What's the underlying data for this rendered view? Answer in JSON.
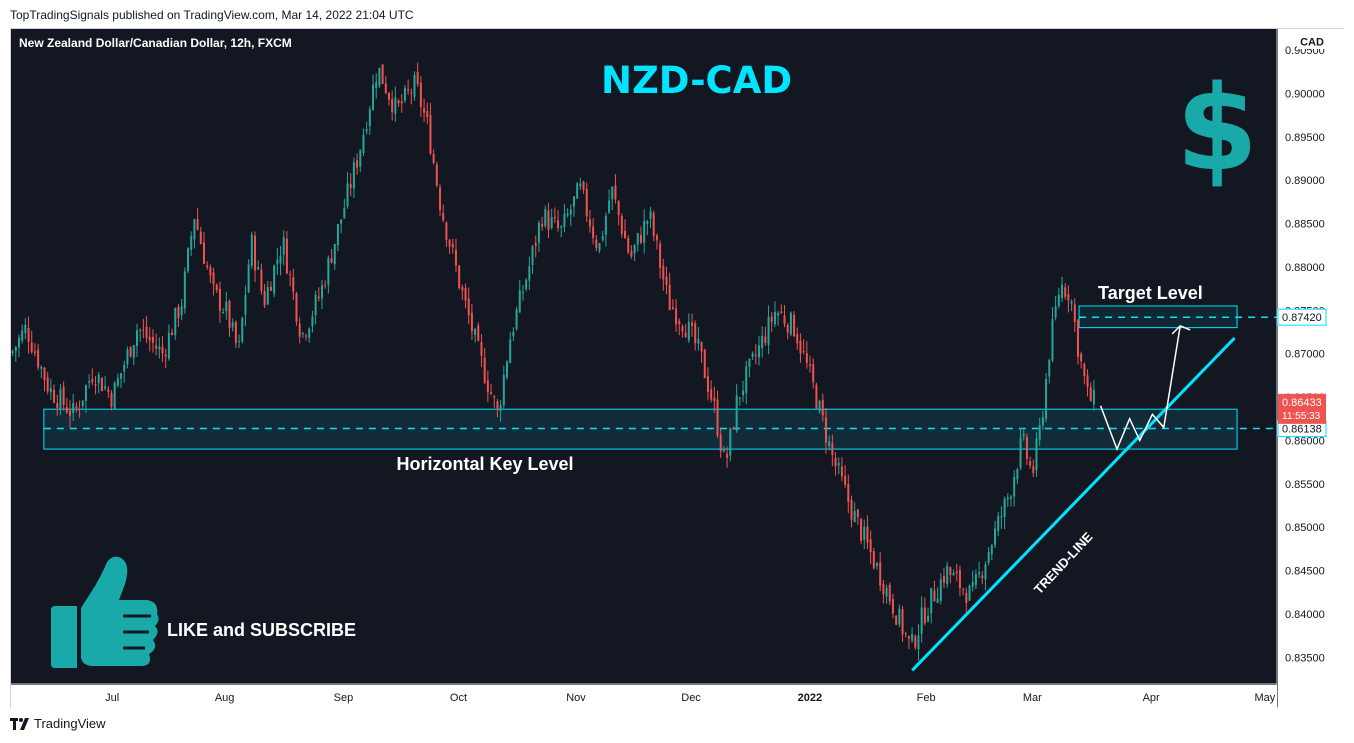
{
  "header": {
    "published": "TopTradingSignals published on TradingView.com, Mar 14, 2022 21:04 UTC"
  },
  "footer": {
    "brand": "TradingView",
    "logo_icon": "tradingview-logo-icon"
  },
  "colors": {
    "background": "#131722",
    "up": "#26a69a",
    "down": "#ef5350",
    "accent": "#00e5ff",
    "teal_icon": "#1aa9a9",
    "white": "#ffffff"
  },
  "chart_data": {
    "type": "candlestick",
    "symbol_title": "New Zealand Dollar/Canadian Dollar, 12h, FXCM",
    "big_title": "NZD-CAD",
    "currency": "CAD",
    "ylim": [
      0.8325,
      0.9065
    ],
    "y_ticks": [
      "0.90500",
      "0.90000",
      "0.89500",
      "0.89000",
      "0.88500",
      "0.88000",
      "0.87500",
      "0.87000",
      "0.86500",
      "0.86000",
      "0.85500",
      "0.85000",
      "0.84500",
      "0.84000",
      "0.83500"
    ],
    "x_ticks": [
      {
        "label": "Jul",
        "t": 0.08,
        "bold": false
      },
      {
        "label": "Aug",
        "t": 0.169,
        "bold": false
      },
      {
        "label": "Sep",
        "t": 0.263,
        "bold": false
      },
      {
        "label": "Oct",
        "t": 0.354,
        "bold": false
      },
      {
        "label": "Nov",
        "t": 0.447,
        "bold": false
      },
      {
        "label": "Dec",
        "t": 0.538,
        "bold": false
      },
      {
        "label": "2022",
        "t": 0.632,
        "bold": true
      },
      {
        "label": "Feb",
        "t": 0.724,
        "bold": false
      },
      {
        "label": "Mar",
        "t": 0.808,
        "bold": false
      },
      {
        "label": "Apr",
        "t": 0.902,
        "bold": false
      },
      {
        "label": "May",
        "t": 0.992,
        "bold": false
      }
    ],
    "price_path": [
      [
        0.0,
        0.87
      ],
      [
        0.012,
        0.873
      ],
      [
        0.03,
        0.866
      ],
      [
        0.05,
        0.863
      ],
      [
        0.065,
        0.868
      ],
      [
        0.08,
        0.865
      ],
      [
        0.1,
        0.873
      ],
      [
        0.12,
        0.87
      ],
      [
        0.135,
        0.876
      ],
      [
        0.145,
        0.886
      ],
      [
        0.16,
        0.877
      ],
      [
        0.17,
        0.875
      ],
      [
        0.18,
        0.87
      ],
      [
        0.19,
        0.883
      ],
      [
        0.2,
        0.876
      ],
      [
        0.215,
        0.883
      ],
      [
        0.23,
        0.872
      ],
      [
        0.245,
        0.877
      ],
      [
        0.26,
        0.885
      ],
      [
        0.275,
        0.893
      ],
      [
        0.29,
        0.903
      ],
      [
        0.305,
        0.898
      ],
      [
        0.32,
        0.901
      ],
      [
        0.33,
        0.896
      ],
      [
        0.34,
        0.887
      ],
      [
        0.355,
        0.878
      ],
      [
        0.37,
        0.87
      ],
      [
        0.385,
        0.863
      ],
      [
        0.395,
        0.872
      ],
      [
        0.41,
        0.88
      ],
      [
        0.42,
        0.886
      ],
      [
        0.435,
        0.884
      ],
      [
        0.45,
        0.889
      ],
      [
        0.465,
        0.882
      ],
      [
        0.475,
        0.889
      ],
      [
        0.49,
        0.881
      ],
      [
        0.505,
        0.886
      ],
      [
        0.52,
        0.876
      ],
      [
        0.535,
        0.873
      ],
      [
        0.545,
        0.87
      ],
      [
        0.556,
        0.864
      ],
      [
        0.565,
        0.857
      ],
      [
        0.575,
        0.865
      ],
      [
        0.59,
        0.87
      ],
      [
        0.605,
        0.875
      ],
      [
        0.62,
        0.873
      ],
      [
        0.635,
        0.866
      ],
      [
        0.65,
        0.858
      ],
      [
        0.665,
        0.852
      ],
      [
        0.68,
        0.847
      ],
      [
        0.695,
        0.842
      ],
      [
        0.712,
        0.836
      ],
      [
        0.722,
        0.84
      ],
      [
        0.74,
        0.845
      ],
      [
        0.76,
        0.842
      ],
      [
        0.775,
        0.848
      ],
      [
        0.79,
        0.854
      ],
      [
        0.8,
        0.86
      ],
      [
        0.808,
        0.856
      ],
      [
        0.815,
        0.862
      ],
      [
        0.822,
        0.871
      ],
      [
        0.83,
        0.878
      ],
      [
        0.838,
        0.877
      ],
      [
        0.845,
        0.87
      ],
      [
        0.852,
        0.865
      ],
      [
        0.858,
        0.8643
      ]
    ],
    "forecast_path": [
      [
        0.862,
        0.864
      ],
      [
        0.875,
        0.859
      ],
      [
        0.885,
        0.8625
      ],
      [
        0.893,
        0.86
      ],
      [
        0.903,
        0.863
      ],
      [
        0.912,
        0.8615
      ],
      [
        0.925,
        0.8732
      ]
    ],
    "horizontal_key_level": {
      "label": "Horizontal Key Level",
      "price": 0.86138,
      "zone": [
        0.859,
        0.8636
      ]
    },
    "target_level": {
      "label": "Target Level",
      "price": 0.8742,
      "zone": [
        0.873,
        0.8755
      ]
    },
    "trend_line": {
      "label": "TREND-LINE",
      "from": [
        0.713,
        0.8335
      ],
      "to": [
        0.968,
        0.8718
      ]
    },
    "current_price": {
      "value": "0.86433",
      "countdown": "11:55:33"
    },
    "price_labels": {
      "target": "0.87420",
      "key": "0.86138"
    }
  },
  "overlays": {
    "like_subscribe": "LIKE and SUBSCRIBE",
    "thumbs_icon": "thumbs-up-icon",
    "dollar_icon": "dollar-sign-icon",
    "dollar_glyph": "$"
  }
}
